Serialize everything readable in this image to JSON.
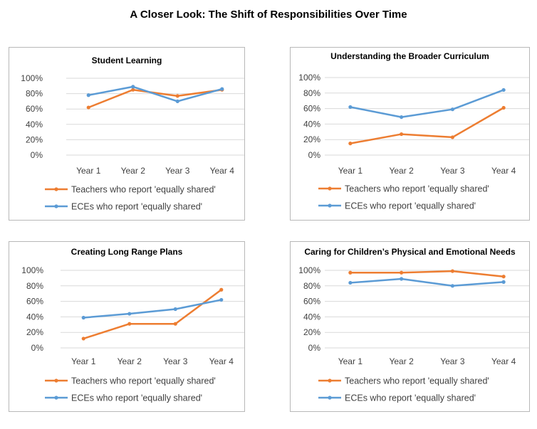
{
  "title": "A Closer Look: The Shift of Responsibilities Over Time",
  "colors": {
    "teachers": "#ED7D31",
    "eces": "#5B9BD5",
    "grid": "#D9D9D9",
    "text": "#404040"
  },
  "chart_data": [
    {
      "type": "line",
      "title": "Student Learning",
      "categories": [
        "Year 1",
        "Year 2",
        "Year 3",
        "Year 4"
      ],
      "y_ticks": [
        "0%",
        "20%",
        "40%",
        "60%",
        "80%",
        "100%"
      ],
      "ylim": [
        0,
        100
      ],
      "legend_position": "bottom",
      "series": [
        {
          "name": "Teachers who report 'equally shared'",
          "color_key": "teachers",
          "values": [
            62,
            85,
            77,
            85
          ]
        },
        {
          "name": "ECEs who report 'equally shared'",
          "color_key": "eces",
          "values": [
            78,
            89,
            70,
            86
          ]
        }
      ]
    },
    {
      "type": "line",
      "title": "Understanding the Broader Curriculum",
      "categories": [
        "Year 1",
        "Year 2",
        "Year 3",
        "Year 4"
      ],
      "y_ticks": [
        "0%",
        "20%",
        "40%",
        "60%",
        "80%",
        "100%"
      ],
      "ylim": [
        0,
        100
      ],
      "legend_position": "bottom",
      "series": [
        {
          "name": "Teachers who report 'equally shared'",
          "color_key": "teachers",
          "values": [
            15,
            27,
            23,
            61
          ]
        },
        {
          "name": "ECEs who report 'equally shared'",
          "color_key": "eces",
          "values": [
            62,
            49,
            59,
            84
          ]
        }
      ]
    },
    {
      "type": "line",
      "title": "Creating Long Range Plans",
      "categories": [
        "Year 1",
        "Year 2",
        "Year 3",
        "Year 4"
      ],
      "y_ticks": [
        "0%",
        "20%",
        "40%",
        "60%",
        "80%",
        "100%"
      ],
      "ylim": [
        0,
        100
      ],
      "legend_position": "bottom",
      "series": [
        {
          "name": "Teachers who report 'equally shared'",
          "color_key": "teachers",
          "values": [
            12,
            31,
            31,
            75
          ]
        },
        {
          "name": "ECEs who report 'equally shared'",
          "color_key": "eces",
          "values": [
            39,
            44,
            50,
            62
          ]
        }
      ]
    },
    {
      "type": "line",
      "title": "Caring for Children’s Physical and Emotional Needs",
      "categories": [
        "Year 1",
        "Year 2",
        "Year 3",
        "Year 4"
      ],
      "y_ticks": [
        "0%",
        "20%",
        "40%",
        "60%",
        "80%",
        "100%"
      ],
      "ylim": [
        0,
        100
      ],
      "legend_position": "bottom",
      "series": [
        {
          "name": "Teachers who report 'equally shared'",
          "color_key": "teachers",
          "values": [
            97,
            97,
            99,
            92
          ]
        },
        {
          "name": "ECEs who report 'equally shared'",
          "color_key": "eces",
          "values": [
            84,
            89,
            80,
            85
          ]
        }
      ]
    }
  ]
}
